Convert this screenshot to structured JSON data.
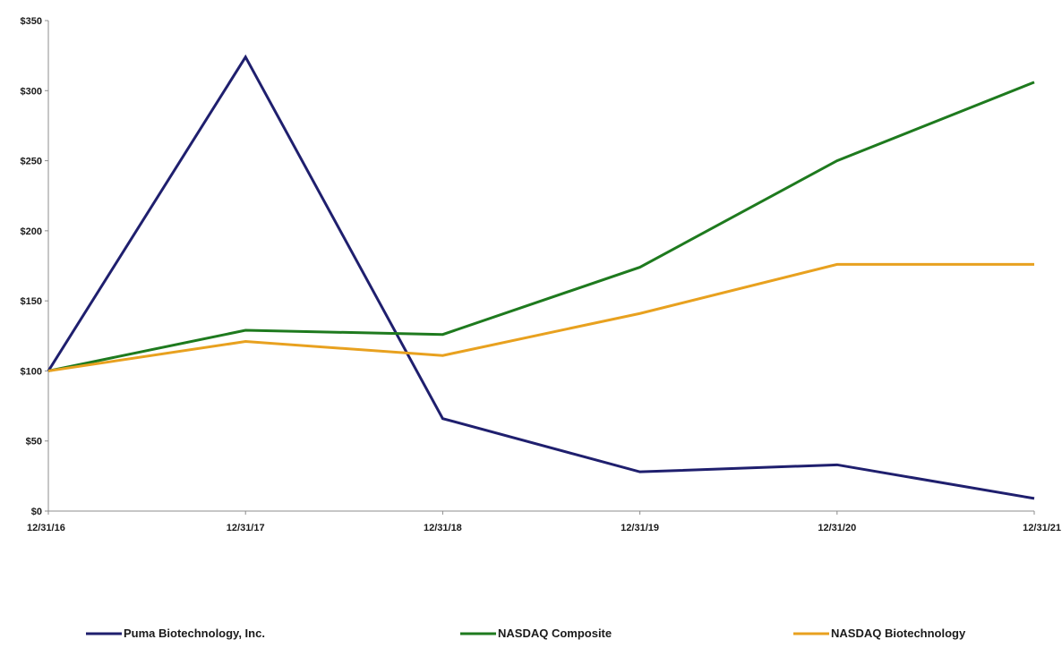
{
  "chart_data": {
    "type": "line",
    "title": "",
    "xlabel": "",
    "ylabel": "",
    "categories": [
      "12/31/16",
      "12/31/17",
      "12/31/18",
      "12/31/19",
      "12/31/20",
      "12/31/21"
    ],
    "y_ticks": [
      "$0",
      "$50",
      "$100",
      "$150",
      "$200",
      "$250",
      "$300",
      "$350"
    ],
    "ylim": [
      0,
      350
    ],
    "grid": false,
    "legend_position": "bottom",
    "series": [
      {
        "name": "Puma Biotechnology, Inc.",
        "color": "#1f1f6e",
        "values": [
          100,
          324,
          66,
          28,
          33,
          9
        ]
      },
      {
        "name": "NASDAQ Composite",
        "color": "#1e7a1e",
        "values": [
          100,
          129,
          126,
          174,
          250,
          306
        ]
      },
      {
        "name": "NASDAQ Biotechnology",
        "color": "#e8a11f",
        "values": [
          100,
          121,
          111,
          141,
          176,
          176
        ]
      }
    ]
  }
}
